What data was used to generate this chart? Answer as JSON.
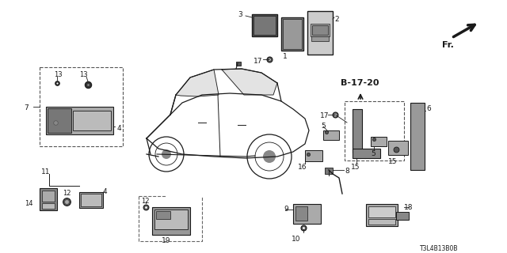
{
  "background_color": "#ffffff",
  "line_color": "#1a1a1a",
  "diagram_ref": "B-17-20",
  "diagram_code": "T3L4B13B0B",
  "figsize": [
    6.4,
    3.2
  ],
  "dpi": 100
}
